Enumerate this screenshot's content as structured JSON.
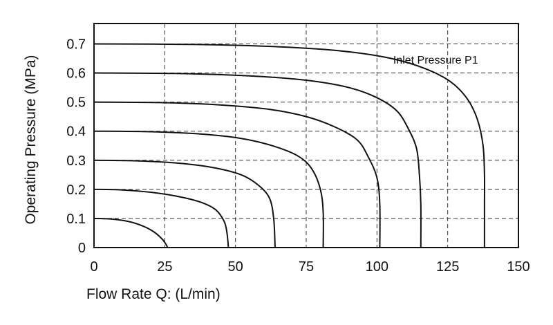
{
  "chart_data": {
    "type": "line",
    "xlabel": "Flow Rate Q:  (L/min)",
    "ylabel": "Operating Pressure (MPa)",
    "xlim": [
      0,
      150
    ],
    "ylim": [
      0,
      0.77
    ],
    "xticks": [
      0,
      25,
      50,
      75,
      100,
      125,
      150
    ],
    "yticks": [
      0,
      0.1,
      0.2,
      0.3,
      0.4,
      0.5,
      0.6,
      0.7
    ],
    "xtick_labels": [
      "0",
      "25",
      "50",
      "75",
      "100",
      "125",
      "150"
    ],
    "ytick_labels": [
      "0",
      "0.1",
      "0.2",
      "0.3",
      "0.4",
      "0.5",
      "0.6",
      "0.7"
    ],
    "grid": true,
    "annotation": "Inlet Pressure P1",
    "series": [
      {
        "start_pressure": 0.1,
        "values": [
          [
            0,
            0.1
          ],
          [
            6,
            0.098
          ],
          [
            12,
            0.09
          ],
          [
            17,
            0.075
          ],
          [
            21,
            0.055
          ],
          [
            24,
            0.03
          ],
          [
            25.5,
            0.01
          ],
          [
            26,
            0
          ]
        ]
      },
      {
        "start_pressure": 0.2,
        "values": [
          [
            0,
            0.2
          ],
          [
            10,
            0.198
          ],
          [
            20,
            0.19
          ],
          [
            30,
            0.175
          ],
          [
            38,
            0.155
          ],
          [
            43,
            0.13
          ],
          [
            46,
            0.09
          ],
          [
            47,
            0.05
          ],
          [
            47.5,
            0
          ]
        ]
      },
      {
        "start_pressure": 0.3,
        "values": [
          [
            0,
            0.3
          ],
          [
            15,
            0.298
          ],
          [
            30,
            0.29
          ],
          [
            42,
            0.275
          ],
          [
            52,
            0.25
          ],
          [
            58,
            0.215
          ],
          [
            62,
            0.17
          ],
          [
            63.5,
            0.1
          ],
          [
            64,
            0
          ]
        ]
      },
      {
        "start_pressure": 0.4,
        "values": [
          [
            0,
            0.4
          ],
          [
            20,
            0.398
          ],
          [
            38,
            0.39
          ],
          [
            52,
            0.375
          ],
          [
            63,
            0.35
          ],
          [
            72,
            0.315
          ],
          [
            77,
            0.27
          ],
          [
            80,
            0.2
          ],
          [
            81,
            0.12
          ],
          [
            81,
            0
          ]
        ]
      },
      {
        "start_pressure": 0.5,
        "values": [
          [
            0,
            0.5
          ],
          [
            25,
            0.498
          ],
          [
            45,
            0.49
          ],
          [
            62,
            0.475
          ],
          [
            75,
            0.45
          ],
          [
            85,
            0.415
          ],
          [
            93,
            0.37
          ],
          [
            97,
            0.31
          ],
          [
            100,
            0.24
          ],
          [
            101,
            0.15
          ],
          [
            101,
            0
          ]
        ]
      },
      {
        "start_pressure": 0.6,
        "values": [
          [
            0,
            0.6
          ],
          [
            30,
            0.598
          ],
          [
            55,
            0.59
          ],
          [
            75,
            0.575
          ],
          [
            90,
            0.55
          ],
          [
            100,
            0.515
          ],
          [
            107,
            0.47
          ],
          [
            111,
            0.41
          ],
          [
            114,
            0.34
          ],
          [
            115,
            0.25
          ],
          [
            115.5,
            0.15
          ],
          [
            115.5,
            0
          ]
        ]
      },
      {
        "start_pressure": 0.7,
        "values": [
          [
            0,
            0.7
          ],
          [
            35,
            0.698
          ],
          [
            65,
            0.69
          ],
          [
            88,
            0.675
          ],
          [
            105,
            0.65
          ],
          [
            117,
            0.615
          ],
          [
            126,
            0.57
          ],
          [
            132,
            0.51
          ],
          [
            135.5,
            0.44
          ],
          [
            137.5,
            0.35
          ],
          [
            138,
            0.25
          ],
          [
            138,
            0.15
          ],
          [
            138,
            0
          ]
        ]
      }
    ]
  }
}
